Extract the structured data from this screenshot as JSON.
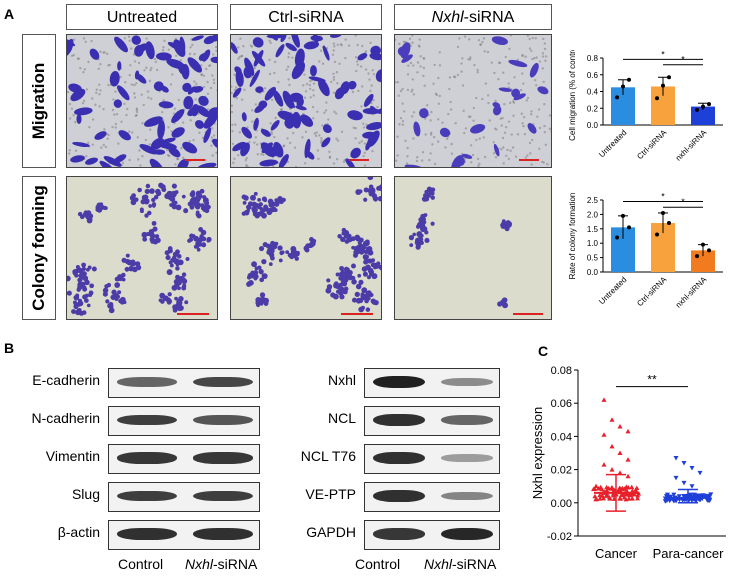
{
  "panelA": {
    "letter": "A",
    "columns": [
      "Untreated",
      "Ctrl-siRNA",
      "-siRNA"
    ],
    "col3_gene": "Nxhl",
    "rows": [
      "Migration",
      "Colony forming"
    ]
  },
  "panelB": {
    "letter": "B",
    "left_blots": [
      "E-cadherin",
      "N-cadherin",
      "Vimentin",
      "Slug",
      "β-actin"
    ],
    "right_blots": [
      "Nxhl",
      "NCL",
      "NCL T76",
      "VE-PTP",
      "GAPDH"
    ],
    "x_control": "Control",
    "x_sirna_gene": "Nxhl",
    "x_sirna_suffix": "-siRNA"
  },
  "panelC": {
    "letter": "C"
  },
  "chart_data": [
    {
      "type": "bar",
      "categories": [
        "Untreated",
        "Ctrl-siRNA",
        "nxhl-siRNA"
      ],
      "values": [
        0.45,
        0.46,
        0.22
      ],
      "errors": [
        0.09,
        0.11,
        0.04
      ],
      "points": [
        [
          0.33,
          0.46,
          0.54
        ],
        [
          0.32,
          0.47,
          0.57
        ],
        [
          0.18,
          0.22,
          0.25
        ]
      ],
      "colors": [
        "#2b8de0",
        "#f7a23c",
        "#1f3fd9"
      ],
      "ylabel": "Cell migration (% of control)",
      "ylim": [
        0,
        0.8
      ],
      "yticks": [
        0.0,
        0.2,
        0.4,
        0.6,
        0.8
      ],
      "ytick_labels": [
        "0.0",
        "0.2",
        "0.4",
        "0.6",
        "0.8"
      ],
      "significance": [
        "*",
        "*"
      ]
    },
    {
      "type": "bar",
      "categories": [
        "Untreated",
        "Ctrl-siRNA",
        "nxhl-siRNA"
      ],
      "values": [
        1.55,
        1.7,
        0.75
      ],
      "errors": [
        0.4,
        0.35,
        0.2
      ],
      "points": [
        [
          1.2,
          1.95,
          1.55
        ],
        [
          1.3,
          2.05,
          1.7
        ],
        [
          0.55,
          0.95,
          0.75
        ]
      ],
      "colors": [
        "#2b8de0",
        "#f7a23c",
        "#f27b1f"
      ],
      "ylabel": "Rate of colony formation",
      "ylim": [
        0,
        2.5
      ],
      "yticks": [
        0.0,
        0.5,
        1.0,
        1.5,
        2.0,
        2.5
      ],
      "ytick_labels": [
        "0.0",
        "0.5",
        "1.0",
        "1.5",
        "2.0",
        "2.5"
      ],
      "significance": [
        "*",
        "*"
      ]
    },
    {
      "type": "scatter",
      "categories": [
        "Cancer",
        "Para-cancer"
      ],
      "colors": [
        "#e8202a",
        "#1f3fd9"
      ],
      "ylabel": "Nxhl expression",
      "ylim": [
        -0.02,
        0.08
      ],
      "yticks": [
        -0.02,
        0.0,
        0.02,
        0.04,
        0.06,
        0.08
      ],
      "ytick_labels": [
        "-0.02",
        "0.00",
        "0.02",
        "0.04",
        "0.06",
        "0.08"
      ],
      "mean": [
        0.006,
        0.003
      ],
      "sd_upper": [
        0.017,
        0.008
      ],
      "sd_lower": [
        -0.005,
        0.0
      ],
      "significance": "**",
      "outliers": [
        [
          0.062,
          0.05,
          0.046,
          0.043,
          0.041,
          0.034,
          0.03,
          0.026,
          0.023,
          0.02,
          0.018,
          0.016
        ],
        [
          0.027,
          0.024,
          0.021,
          0.018,
          0.015,
          0.012,
          0.01
        ]
      ]
    }
  ]
}
